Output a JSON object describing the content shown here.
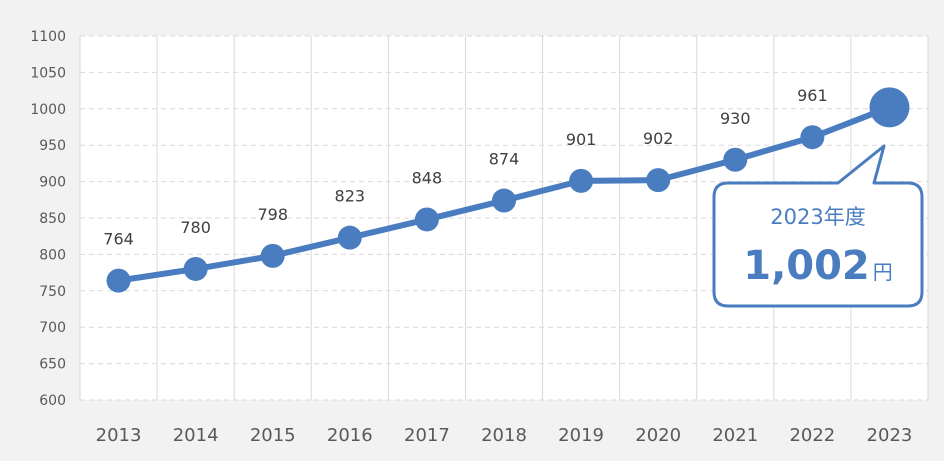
{
  "chart_data": {
    "type": "line",
    "title": "",
    "xlabel": "",
    "ylabel": "",
    "categories": [
      "2013",
      "2014",
      "2015",
      "2016",
      "2017",
      "2018",
      "2019",
      "2020",
      "2021",
      "2022",
      "2023"
    ],
    "series": [
      {
        "values": [
          764,
          780,
          798,
          823,
          848,
          874,
          901,
          902,
          930,
          961,
          1002
        ]
      }
    ],
    "data_labels": [
      "764",
      "780",
      "798",
      "823",
      "848",
      "874",
      "901",
      "902",
      "930",
      "961"
    ],
    "ylim": [
      600,
      1100
    ],
    "yticks": [
      600,
      650,
      700,
      750,
      800,
      850,
      900,
      950,
      1000,
      1050,
      1100
    ],
    "grid": {
      "horizontal": "dashed",
      "vertical": "solid"
    },
    "legend": "none",
    "highlight": {
      "category": "2023",
      "year_label": "2023年度",
      "value_text": "1,002",
      "unit": "円"
    },
    "colors": {
      "line": "#4a7cc0",
      "marker": "#4a7cc0",
      "grid": "#d9d9d9",
      "background": "#f2f2f2",
      "plot_background": "#ffffff"
    }
  }
}
